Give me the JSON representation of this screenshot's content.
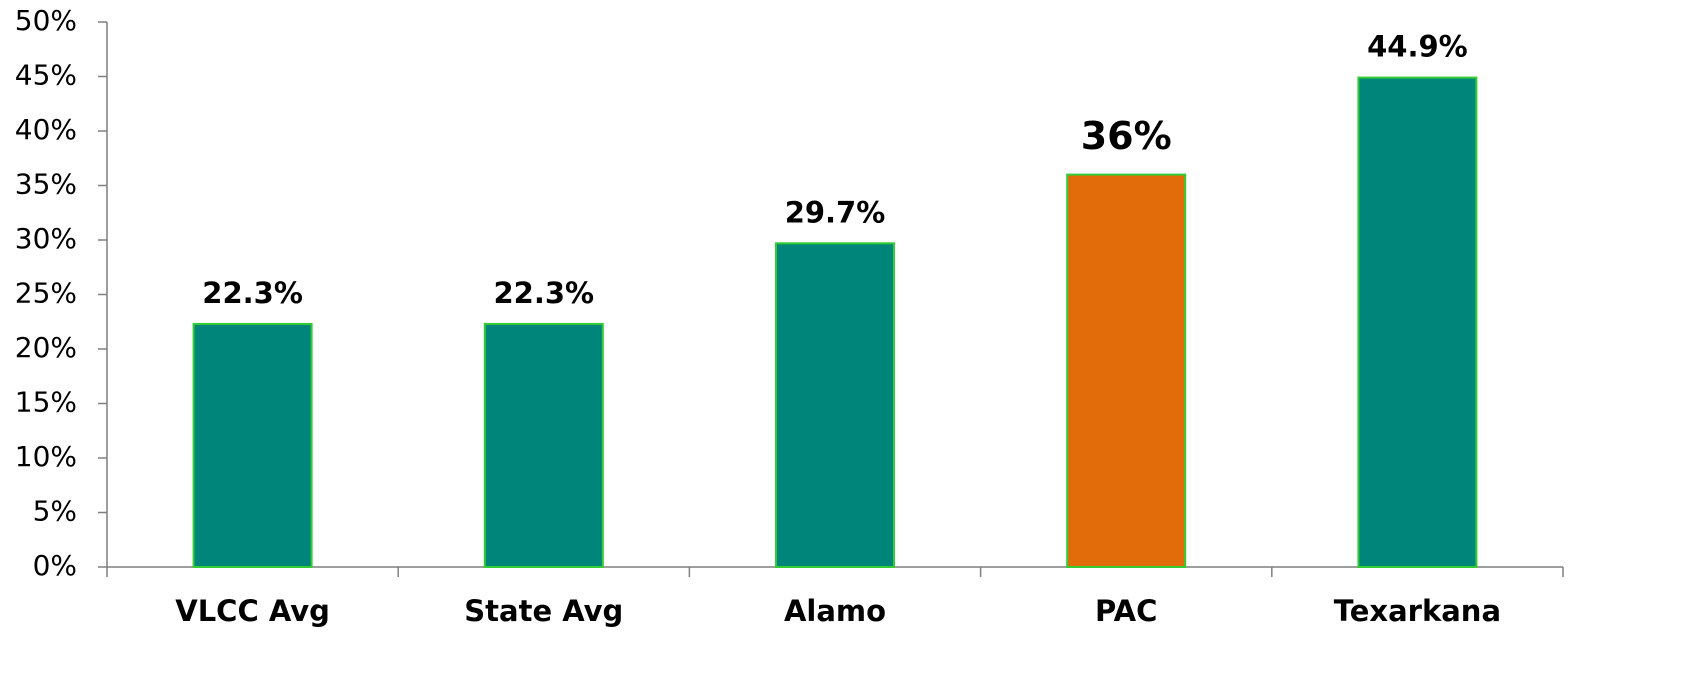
{
  "chart_data": {
    "type": "bar",
    "categories": [
      "VLCC Avg",
      "State Avg",
      "Alamo",
      "PAC",
      "Texarkana"
    ],
    "values": [
      22.3,
      22.3,
      29.7,
      36,
      44.9
    ],
    "value_labels": [
      "22.3%",
      "22.3%",
      "29.7%",
      "36%",
      "44.9%"
    ],
    "colors": [
      "#00857a",
      "#00857a",
      "#00857a",
      "#e36c0a",
      "#00857a"
    ],
    "ylim": [
      0,
      50
    ],
    "yticks": [
      {
        "value": 0,
        "label": "0%"
      },
      {
        "value": 5,
        "label": "5%"
      },
      {
        "value": 10,
        "label": "10%"
      },
      {
        "value": 15,
        "label": "15%"
      },
      {
        "value": 20,
        "label": "20%"
      },
      {
        "value": 25,
        "label": "25%"
      },
      {
        "value": 30,
        "label": "30%"
      },
      {
        "value": 35,
        "label": "35%"
      },
      {
        "value": 40,
        "label": "40%"
      },
      {
        "value": 45,
        "label": "45%"
      },
      {
        "value": 50,
        "label": "50%"
      }
    ],
    "grid": false
  }
}
